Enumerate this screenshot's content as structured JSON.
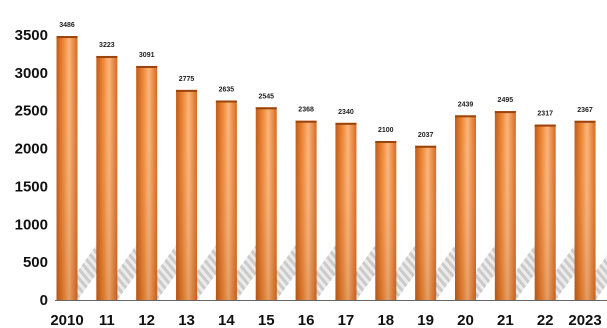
{
  "chart_data": {
    "type": "bar",
    "categories": [
      "2010",
      "11",
      "12",
      "13",
      "14",
      "15",
      "16",
      "17",
      "18",
      "19",
      "20",
      "21",
      "22",
      "2023"
    ],
    "values": [
      3486,
      3223,
      3091,
      2775,
      2635,
      2545,
      2368,
      2340,
      2100,
      2037,
      2439,
      2495,
      2317,
      2367
    ],
    "data_labels": [
      "3486",
      "3223",
      "3091",
      "2775",
      "2635",
      "2545",
      "2368",
      "2340",
      "2100",
      "2037",
      "2439",
      "2495",
      "2317",
      "2367"
    ],
    "y_ticks": [
      0,
      500,
      1000,
      1500,
      2000,
      2500,
      3000,
      3500
    ],
    "ylim": [
      0,
      3600
    ],
    "title": "",
    "xlabel": "",
    "ylabel": "",
    "grid": false,
    "legend": "none",
    "colors": {
      "bar_light": "#fcc89a",
      "bar_mid": "#ee7c2c",
      "bar_dark": "#b8520f",
      "shadow": "#c8c8c8",
      "axis": "#666666"
    }
  }
}
